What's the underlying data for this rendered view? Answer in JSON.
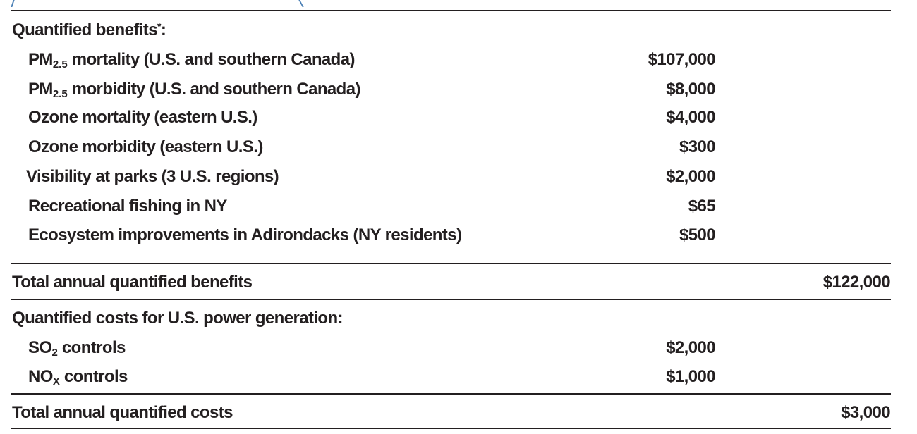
{
  "benefits": {
    "heading": "Quantified benefits",
    "heading_mark": "*",
    "heading_suffix": ":",
    "items": [
      {
        "pre": "PM",
        "sub": "2.5",
        "post": " mortality (U.S. and southern Canada)",
        "value": "$107,000"
      },
      {
        "pre": "PM",
        "sub": "2.5",
        "post": " morbidity (U.S. and southern Canada)",
        "value": "$8,000"
      },
      {
        "pre": "Ozone mortality (eastern U.S.)",
        "value": "$4,000"
      },
      {
        "pre": "Ozone morbidity (eastern U.S.)",
        "value": "$300"
      },
      {
        "pre": "Visibility at parks (3 U.S. regions)",
        "value": "$2,000"
      },
      {
        "pre": "Recreational fishing in NY",
        "value": "$65"
      },
      {
        "pre": "Ecosystem improvements in Adirondacks (NY residents)",
        "value": "$500"
      }
    ],
    "total_label": "Total annual quantified benefits",
    "total_value": "$122,000"
  },
  "costs": {
    "heading": "Quantified costs for U.S. power generation:",
    "items": [
      {
        "pre": "SO",
        "sub": "2",
        "post": " controls",
        "value": "$2,000"
      },
      {
        "pre": "NO",
        "sub": "X",
        "post": " controls",
        "value": "$1,000"
      }
    ],
    "total_label": "Total annual quantified costs",
    "total_value": "$3,000"
  }
}
